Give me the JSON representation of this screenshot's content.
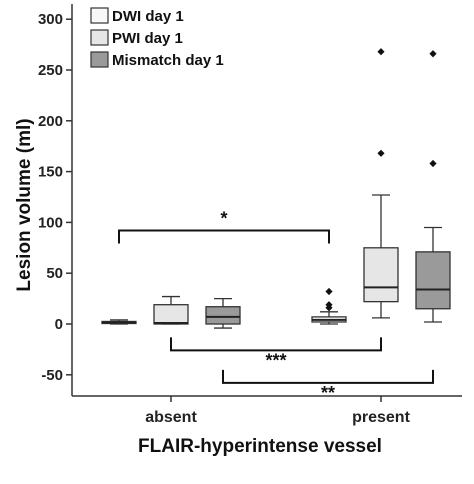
{
  "chart_data": {
    "type": "boxplot",
    "ylabel": "Lesion volume (ml)",
    "xlabel": "FLAIR-hyperintense vessel",
    "ylim": [
      -60,
      310
    ],
    "yticks": [
      -50,
      0,
      50,
      100,
      150,
      200,
      250,
      300
    ],
    "categories": [
      "absent",
      "present"
    ],
    "legend": {
      "position": "top-left"
    },
    "grid": false,
    "series": [
      {
        "name": "DWI day 1",
        "color": "#f8f8f8",
        "boxes": [
          {
            "category": "absent",
            "whisker_low": 0,
            "q1": 0.5,
            "median": 1.5,
            "q3": 2.5,
            "whisker_high": 4,
            "outliers": []
          },
          {
            "category": "present",
            "whisker_low": 0,
            "q1": 2,
            "median": 4,
            "q3": 7,
            "whisker_high": 12,
            "outliers": [
              16,
              19,
              32
            ]
          }
        ]
      },
      {
        "name": "PWI day 1",
        "color": "#e6e6e6",
        "boxes": [
          {
            "category": "absent",
            "whisker_low": 0,
            "q1": 0,
            "median": 1,
            "q3": 19,
            "whisker_high": 27,
            "outliers": []
          },
          {
            "category": "present",
            "whisker_low": 6,
            "q1": 22,
            "median": 36,
            "q3": 75,
            "whisker_high": 127,
            "outliers": [
              168,
              268
            ]
          }
        ]
      },
      {
        "name": "Mismatch day 1",
        "color": "#9a9a9a",
        "boxes": [
          {
            "category": "absent",
            "whisker_low": -4,
            "q1": 0,
            "median": 7,
            "q3": 17,
            "whisker_high": 25,
            "outliers": []
          },
          {
            "category": "present",
            "whisker_low": 2,
            "q1": 15,
            "median": 34,
            "q3": 71,
            "whisker_high": 95,
            "outliers": [
              158,
              266
            ]
          }
        ]
      }
    ],
    "annotations": [
      {
        "label": "*",
        "from": "DWI day 1 / absent",
        "to": "DWI day 1 / present",
        "y": 92,
        "direction": "down"
      },
      {
        "label": "***",
        "from": "PWI day 1 / absent",
        "to": "PWI day 1 / present",
        "y": -26,
        "direction": "up"
      },
      {
        "label": "**",
        "from": "Mismatch day 1 / absent",
        "to": "Mismatch day 1 / present",
        "y": -58,
        "direction": "up"
      }
    ]
  }
}
